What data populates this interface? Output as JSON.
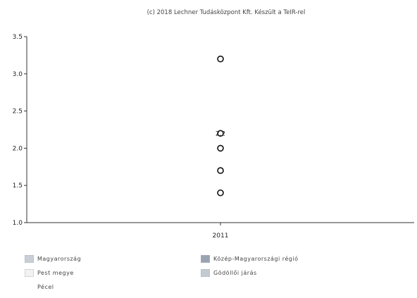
{
  "chart_data": {
    "type": "scatter",
    "title": "(c) 2018 Lechner Tudásközpont Kft. Készült a TeIR-rel",
    "xlabel": "",
    "ylabel": "",
    "categories": [
      "2011"
    ],
    "yticks": [
      "1.0",
      "1.5",
      "2.0",
      "2.5",
      "3.0",
      "3.5"
    ],
    "ylim": [
      1.0,
      3.5
    ],
    "grid": false,
    "legend_position": "bottom",
    "marker_color": "#111111",
    "series": [
      {
        "name": "Magyarország",
        "values": [
          1.4
        ],
        "swatch_color": "#c9ced6"
      },
      {
        "name": "Közép-Magyarországi régió",
        "values": [
          2.0
        ],
        "swatch_color": "#9aa3b2"
      },
      {
        "name": "Pest megye",
        "values": [
          1.7
        ],
        "swatch_color": "#f2f2f2"
      },
      {
        "name": "Gödöllői járás",
        "values": [
          3.2
        ],
        "swatch_color": "#c4cad2"
      },
      {
        "name": "Pécel",
        "values": [
          2.2
        ],
        "swatch_color": "#ffffff"
      }
    ],
    "annotations": [
      {
        "text": "2.2",
        "category": "2011",
        "y": 2.2
      }
    ]
  }
}
